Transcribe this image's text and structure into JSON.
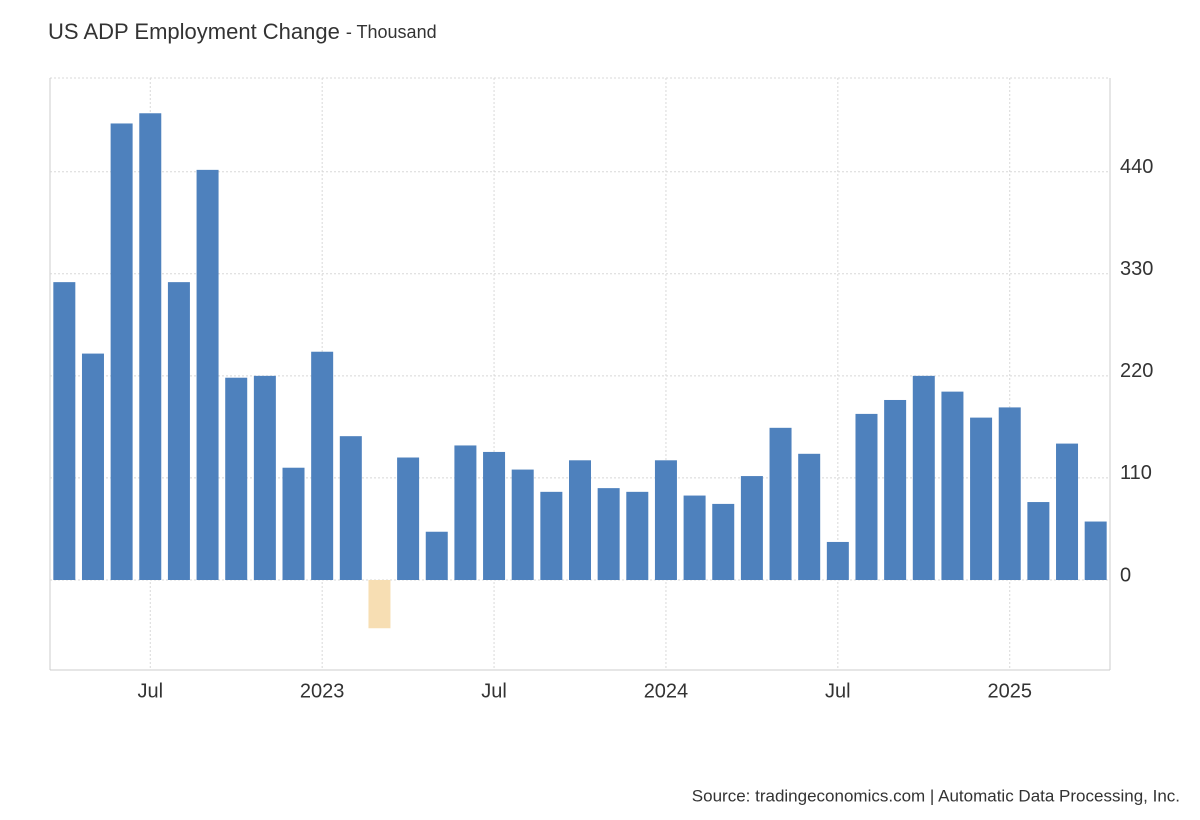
{
  "chart_data": {
    "type": "bar",
    "title": "US ADP Employment Change",
    "subtitle": "- Thousand",
    "source": "Source: tradingeconomics.com | Automatic Data Processing, Inc.",
    "categories": [
      null,
      null,
      null,
      "Jul",
      null,
      null,
      null,
      null,
      null,
      "2023",
      null,
      null,
      null,
      null,
      null,
      "Jul",
      null,
      null,
      null,
      null,
      null,
      "2024",
      null,
      null,
      null,
      null,
      null,
      "Jul",
      null,
      null,
      null,
      null,
      null,
      "2025",
      null,
      null,
      null
    ],
    "values": [
      321,
      244,
      492,
      503,
      321,
      442,
      218,
      220,
      121,
      246,
      155,
      -52,
      132,
      52,
      145,
      138,
      119,
      95,
      129,
      99,
      95,
      129,
      91,
      82,
      112,
      164,
      136,
      41,
      179,
      194,
      220,
      203,
      175,
      186,
      84,
      147,
      63
    ],
    "color": "#4e81bd",
    "negative_color": "#f7deb3",
    "ylim": [
      -97,
      541
    ],
    "yticks": [
      0,
      110,
      220,
      330,
      440
    ],
    "grid": true
  }
}
